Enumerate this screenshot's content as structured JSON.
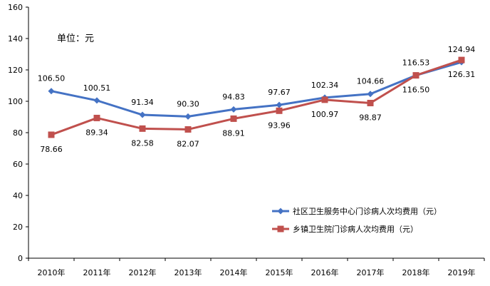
{
  "chart_data": {
    "type": "line",
    "title": "",
    "unit_label": "单位：元",
    "xlabel": "",
    "ylabel": "",
    "ylim": [
      0,
      160
    ],
    "yticks": [
      0,
      20,
      40,
      60,
      80,
      100,
      120,
      140,
      160
    ],
    "categories": [
      "2010年",
      "2011年",
      "2012年",
      "2013年",
      "2014年",
      "2015年",
      "2016年",
      "2017年",
      "2018年",
      "2019年"
    ],
    "grid": false,
    "legend_position": "bottom-right",
    "series": [
      {
        "name": "社区卫生服务中心门诊病人次均费用（元）",
        "color": "#4472C4",
        "marker": "diamond",
        "values": [
          106.5,
          100.51,
          91.34,
          90.3,
          94.83,
          97.67,
          102.34,
          104.66,
          116.5,
          124.94
        ],
        "labels": [
          "106.50",
          "100.51",
          "91.34",
          "90.30",
          "94.83",
          "97.67",
          "102.34",
          "104.66",
          "116.50",
          "124.94"
        ],
        "label_side": [
          "above",
          "above",
          "above",
          "above",
          "above",
          "above",
          "above",
          "above",
          "below",
          "above"
        ]
      },
      {
        "name": "乡镇卫生院门诊病人次均费用（元）",
        "color": "#C0504D",
        "marker": "square",
        "values": [
          78.66,
          89.34,
          82.58,
          82.07,
          88.91,
          93.96,
          100.97,
          98.87,
          116.53,
          126.31
        ],
        "labels": [
          "78.66",
          "89.34",
          "82.58",
          "82.07",
          "88.91",
          "93.96",
          "100.97",
          "98.87",
          "116.53",
          "126.31"
        ],
        "label_side": [
          "below",
          "below",
          "below",
          "below",
          "below",
          "below",
          "below",
          "below",
          "above",
          "below"
        ]
      }
    ]
  }
}
